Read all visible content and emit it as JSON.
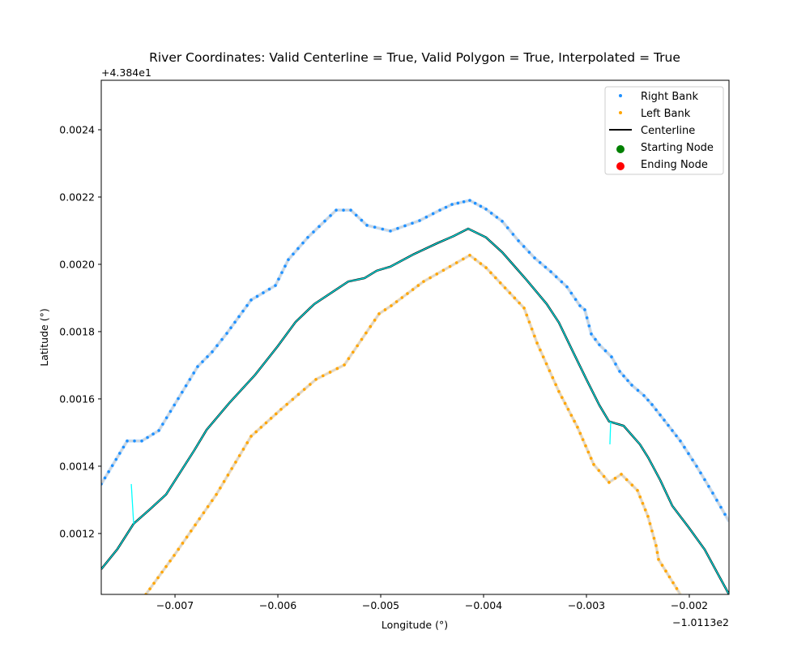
{
  "chart_data": {
    "type": "line",
    "title": "River Coordinates: Valid Centerline = True, Valid Polygon = True, Interpolated = True",
    "xlabel": "Longitude (°)",
    "ylabel": "Latitude (°)",
    "x_offset_label": "−1.0113e2",
    "y_offset_label": "+4.384e1",
    "xlim": [
      -0.007717,
      -0.001614
    ],
    "ylim": [
      0.001019,
      0.002547
    ],
    "xticks": [
      -0.007,
      -0.006,
      -0.005,
      -0.004,
      -0.003,
      -0.002
    ],
    "xtick_labels": [
      "−0.007",
      "−0.006",
      "−0.005",
      "−0.004",
      "−0.003",
      "−0.002"
    ],
    "yticks": [
      0.0012,
      0.0014,
      0.0016,
      0.0018,
      0.002,
      0.0022,
      0.0024
    ],
    "ytick_labels": [
      "0.0012",
      "0.0014",
      "0.0016",
      "0.0018",
      "0.0020",
      "0.0022",
      "0.0024"
    ],
    "grid": false,
    "legend_placement": "upper-right",
    "legend": [
      {
        "label": "Right Bank",
        "marker": "dot",
        "color": "#1e90ff"
      },
      {
        "label": "Left Bank",
        "marker": "dot",
        "color": "#ffa500"
      },
      {
        "label": "Centerline",
        "marker": "line",
        "color": "#000000"
      },
      {
        "label": "Starting Node",
        "marker": "big-dot",
        "color": "#008000"
      },
      {
        "label": "Ending Node",
        "marker": "big-dot",
        "color": "#ff0000"
      }
    ],
    "series": [
      {
        "name": "Right Bank",
        "color": "#1e90ff",
        "line_color": "#d3d3d3",
        "x": [
          -0.007717,
          -0.007465,
          -0.007323,
          -0.007157,
          -0.00678,
          -0.006638,
          -0.006496,
          -0.00626,
          -0.006024,
          -0.005898,
          -0.005709,
          -0.005433,
          -0.005291,
          -0.005134,
          -0.004906,
          -0.004622,
          -0.004425,
          -0.004307,
          -0.004134,
          -0.003976,
          -0.003819,
          -0.003661,
          -0.003504,
          -0.003346,
          -0.003189,
          -0.003063,
          -0.003016,
          -0.002953,
          -0.002874,
          -0.002756,
          -0.002677,
          -0.002559,
          -0.002441,
          -0.002362,
          -0.002244,
          -0.002087,
          -0.001929,
          -0.001772,
          -0.001614
        ],
        "y": [
          0.001347,
          0.001475,
          0.001475,
          0.001506,
          0.001696,
          0.00174,
          0.001795,
          0.001894,
          0.001937,
          0.002014,
          0.00208,
          0.002161,
          0.002161,
          0.002116,
          0.002099,
          0.00213,
          0.002161,
          0.002178,
          0.00219,
          0.002164,
          0.002128,
          0.00207,
          0.002019,
          0.001978,
          0.001933,
          0.001877,
          0.001865,
          0.001793,
          0.001761,
          0.001725,
          0.001682,
          0.001641,
          0.00161,
          0.001583,
          0.001537,
          0.001475,
          0.0014,
          0.00132,
          0.001236
        ]
      },
      {
        "name": "Left Bank",
        "color": "#ffa500",
        "line_color": "#d3d3d3",
        "x": [
          -0.007283,
          -0.007008,
          -0.006598,
          -0.00626,
          -0.005969,
          -0.00563,
          -0.005354,
          -0.005016,
          -0.004898,
          -0.004583,
          -0.004134,
          -0.003976,
          -0.003606,
          -0.00348,
          -0.003268,
          -0.003087,
          -0.002929,
          -0.00278,
          -0.002661,
          -0.002504,
          -0.002402,
          -0.002323,
          -0.002299,
          -0.002087
        ],
        "y": [
          0.001019,
          0.001135,
          0.001316,
          0.001489,
          0.001569,
          0.001658,
          0.001701,
          0.001853,
          0.001877,
          0.001949,
          0.002027,
          0.00199,
          0.00187,
          0.001766,
          0.001622,
          0.001516,
          0.001405,
          0.001352,
          0.001376,
          0.001328,
          0.001251,
          0.001164,
          0.001123,
          0.001019
        ]
      },
      {
        "name": "Centerline",
        "color": "#00e5e5",
        "line_color": "#000000",
        "x": [
          -0.007717,
          -0.007559,
          -0.007402,
          -0.007244,
          -0.007087,
          -0.006811,
          -0.006693,
          -0.006472,
          -0.00622,
          -0.006,
          -0.005827,
          -0.005646,
          -0.005433,
          -0.005315,
          -0.005157,
          -0.005039,
          -0.004906,
          -0.004685,
          -0.004449,
          -0.004291,
          -0.00415,
          -0.003976,
          -0.003819,
          -0.003583,
          -0.003386,
          -0.003268,
          -0.003126,
          -0.002992,
          -0.002874,
          -0.00278,
          -0.002638,
          -0.00248,
          -0.002402,
          -0.002283,
          -0.002165,
          -0.002008,
          -0.00185,
          -0.001614
        ],
        "y": [
          0.001094,
          0.001154,
          0.001229,
          0.001272,
          0.001316,
          0.001448,
          0.001508,
          0.001588,
          0.001672,
          0.001757,
          0.001829,
          0.001882,
          0.001925,
          0.001949,
          0.001959,
          0.001981,
          0.001993,
          0.002029,
          0.002063,
          0.002084,
          0.002106,
          0.00208,
          0.002036,
          0.001954,
          0.001882,
          0.001827,
          0.001737,
          0.001653,
          0.001581,
          0.001533,
          0.00152,
          0.001465,
          0.001427,
          0.001359,
          0.001282,
          0.001219,
          0.001152,
          0.001019
        ]
      },
      {
        "color": "#00ffff",
        "x": [
          -0.007425,
          -0.007402
        ],
        "y": [
          0.001347,
          0.001229
        ]
      },
      {
        "color": "#00ffff",
        "x": [
          -0.002764,
          -0.002772
        ],
        "y": [
          0.001533,
          0.001465
        ]
      }
    ]
  }
}
